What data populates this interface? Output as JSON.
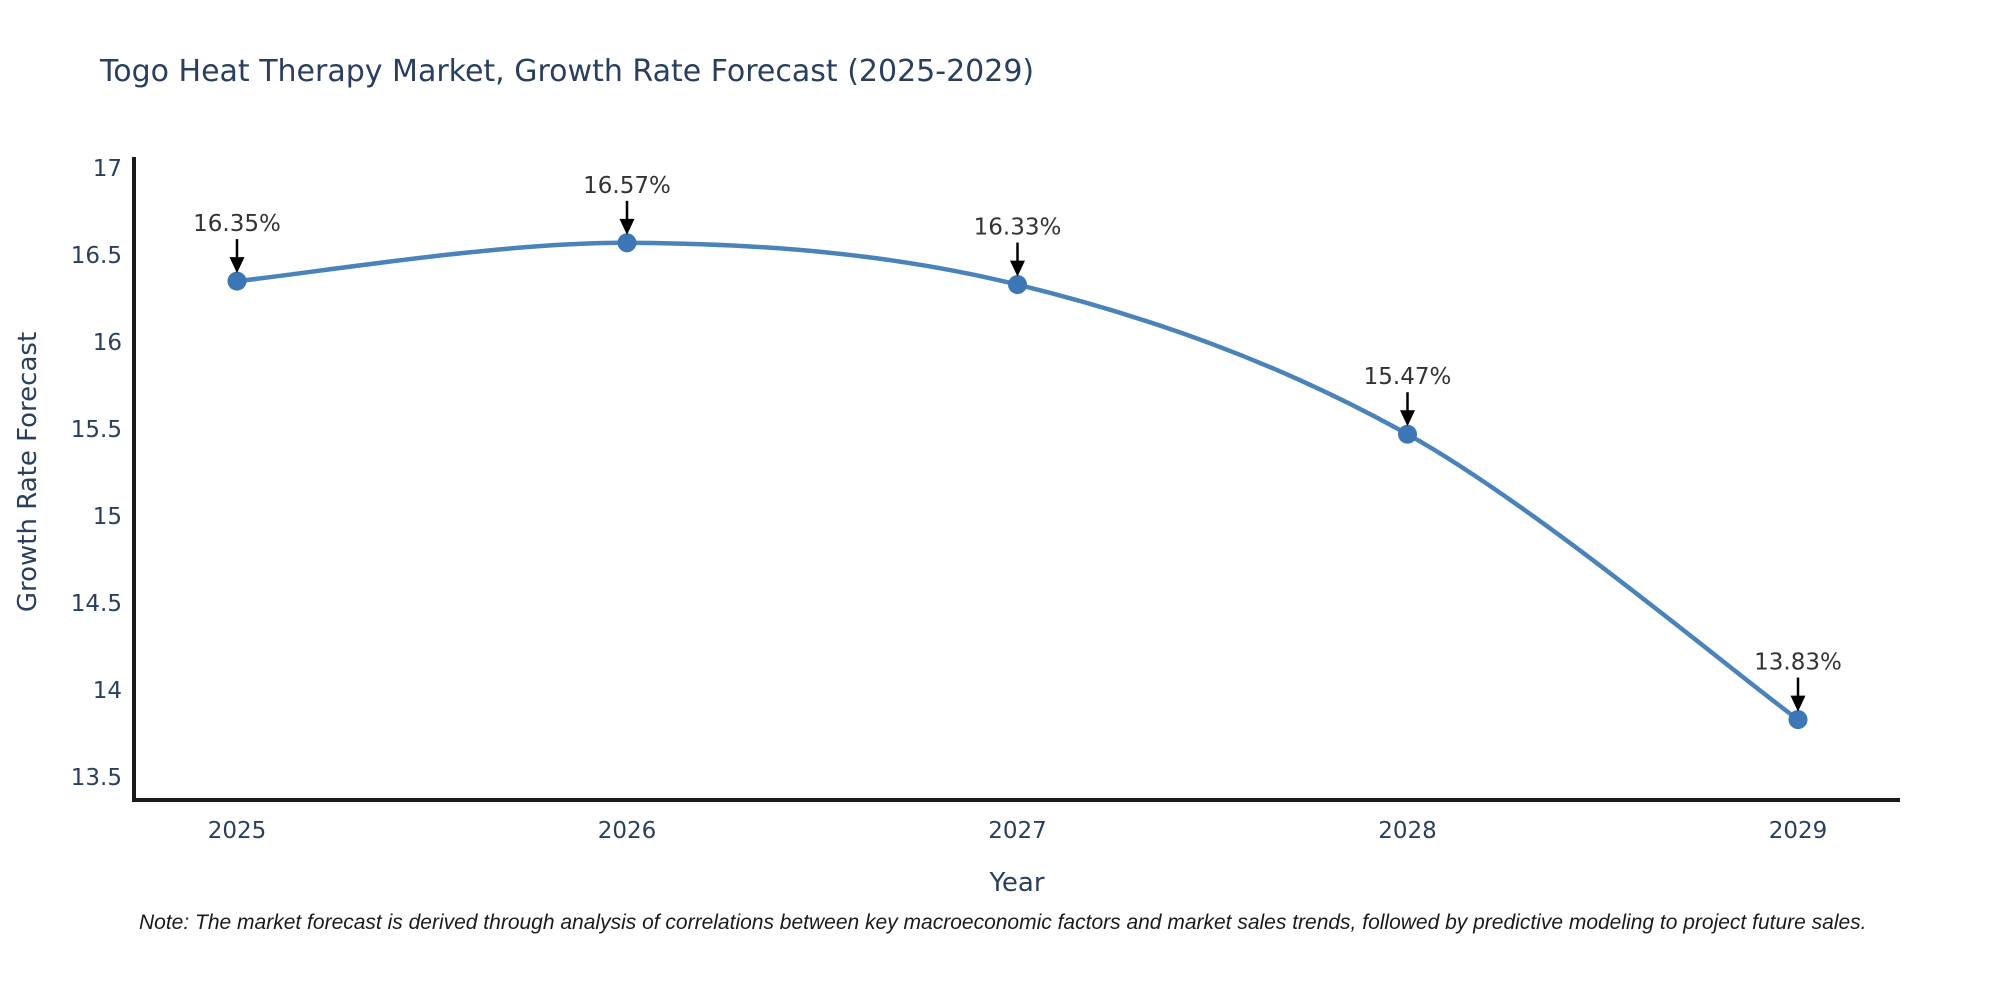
{
  "title": "Togo Heat Therapy Market, Growth Rate Forecast (2025-2029)",
  "note": "Note: The market forecast is derived through analysis of correlations between key macroeconomic factors and market sales trends, followed by predictive modeling to project future sales.",
  "chart_data": {
    "type": "line",
    "line_shape": "spline",
    "title": "Togo Heat Therapy Market, Growth Rate Forecast (2025-2029)",
    "xlabel": "Year",
    "ylabel": "Growth Rate Forecast",
    "x": [
      2025,
      2026,
      2027,
      2028,
      2029
    ],
    "series": [
      {
        "name": "Growth Rate Forecast",
        "values": [
          16.35,
          16.57,
          16.33,
          15.47,
          13.83
        ]
      }
    ],
    "point_labels": [
      "16.35%",
      "16.57%",
      "16.33%",
      "15.47%",
      "13.83%"
    ],
    "yticks": [
      17,
      16.5,
      16,
      15.5,
      15,
      14.5,
      14,
      13.5
    ],
    "xticks": [
      "2025",
      "2026",
      "2027",
      "2028",
      "2029"
    ],
    "ylim": [
      13.37,
      17.06
    ],
    "grid": false,
    "legend": "none",
    "annotation_style": "black-down-arrow",
    "colors": {
      "line": "#4a83ba",
      "marker": "#3c76b4",
      "axis": "#1a1a1a",
      "tick_text": "#2a3f5f",
      "title_text": "#2a3f5f",
      "annotation_text": "#333333",
      "arrow": "#000000",
      "background": "#ffffff"
    }
  }
}
